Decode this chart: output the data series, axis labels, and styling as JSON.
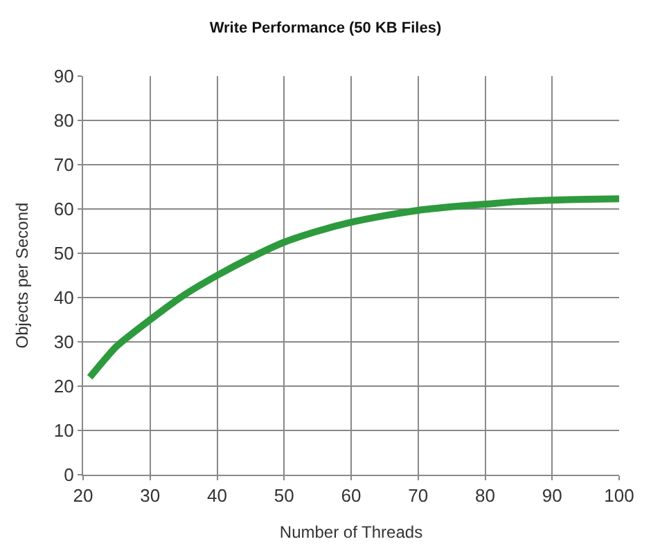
{
  "chart_data": {
    "type": "line",
    "title": "Write Performance (50 KB Files)",
    "xlabel": "Number of Threads",
    "ylabel": "Objects per Second",
    "x": [
      21,
      25,
      30,
      35,
      40,
      45,
      50,
      55,
      60,
      65,
      70,
      75,
      80,
      85,
      90,
      95,
      100
    ],
    "series": [
      {
        "color": "#2e9a3e",
        "values": [
          22,
          29,
          35,
          40.5,
          45,
          49,
          52.5,
          55,
          57,
          58.5,
          59.7,
          60.5,
          61.1,
          61.7,
          62,
          62.2,
          62.3
        ]
      }
    ],
    "xlim": [
      20,
      100
    ],
    "xticks": [
      20,
      30,
      40,
      50,
      60,
      70,
      80,
      90,
      100
    ],
    "ylim": [
      0,
      90
    ],
    "yticks": [
      0,
      10,
      20,
      30,
      40,
      50,
      60,
      70,
      80,
      90
    ],
    "grid": true,
    "legend": false,
    "marker": "none",
    "line_style": "solid"
  }
}
